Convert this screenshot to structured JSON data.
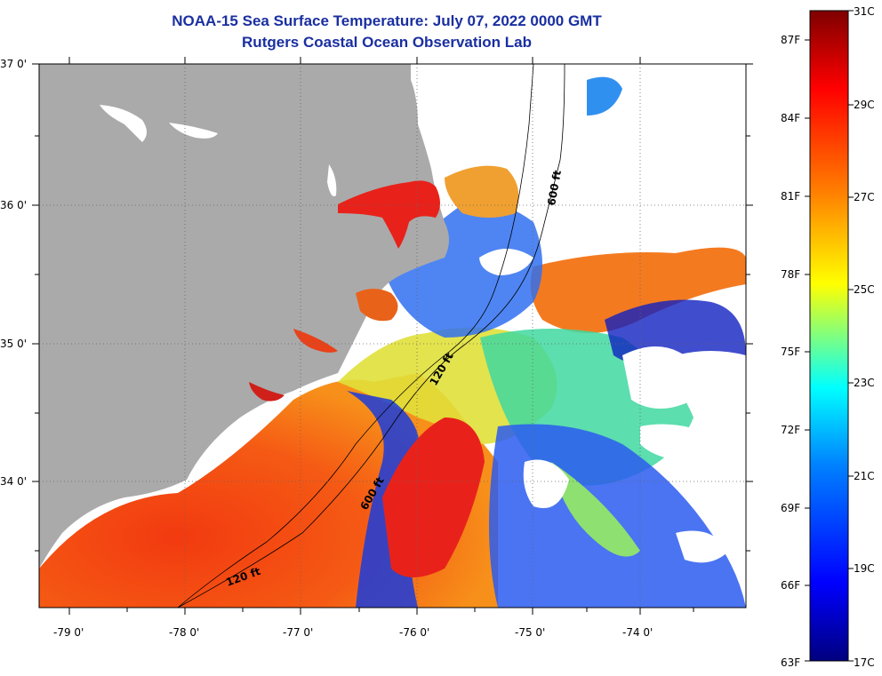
{
  "title": "NOAA-15 Sea Surface Temperature:  July 07, 2022 0000 GMT",
  "subtitle": "Rutgers Coastal Ocean Observation Lab",
  "axes": {
    "lat_labels": [
      "37 0'",
      "36 0'",
      "35 0'",
      "34 0'"
    ],
    "lon_labels": [
      "-79 0'",
      "-78 0'",
      "-77 0'",
      "-76 0'",
      "-75 0'",
      "-74 0'"
    ]
  },
  "contours": {
    "c600_top": "600 ft",
    "c120_mid": "120 ft",
    "c600_bot": "600 ft",
    "c120_bot": "120 ft"
  },
  "colorbar": {
    "celsius": [
      "31C",
      "29C",
      "27C",
      "25C",
      "23C",
      "21C",
      "19C",
      "17C"
    ],
    "fahrenheit": [
      "87F",
      "84F",
      "81F",
      "78F",
      "75F",
      "72F",
      "69F",
      "66F",
      "63F"
    ]
  },
  "colors": {
    "land": "#aaaaaa",
    "title": "#1a2fa0"
  }
}
